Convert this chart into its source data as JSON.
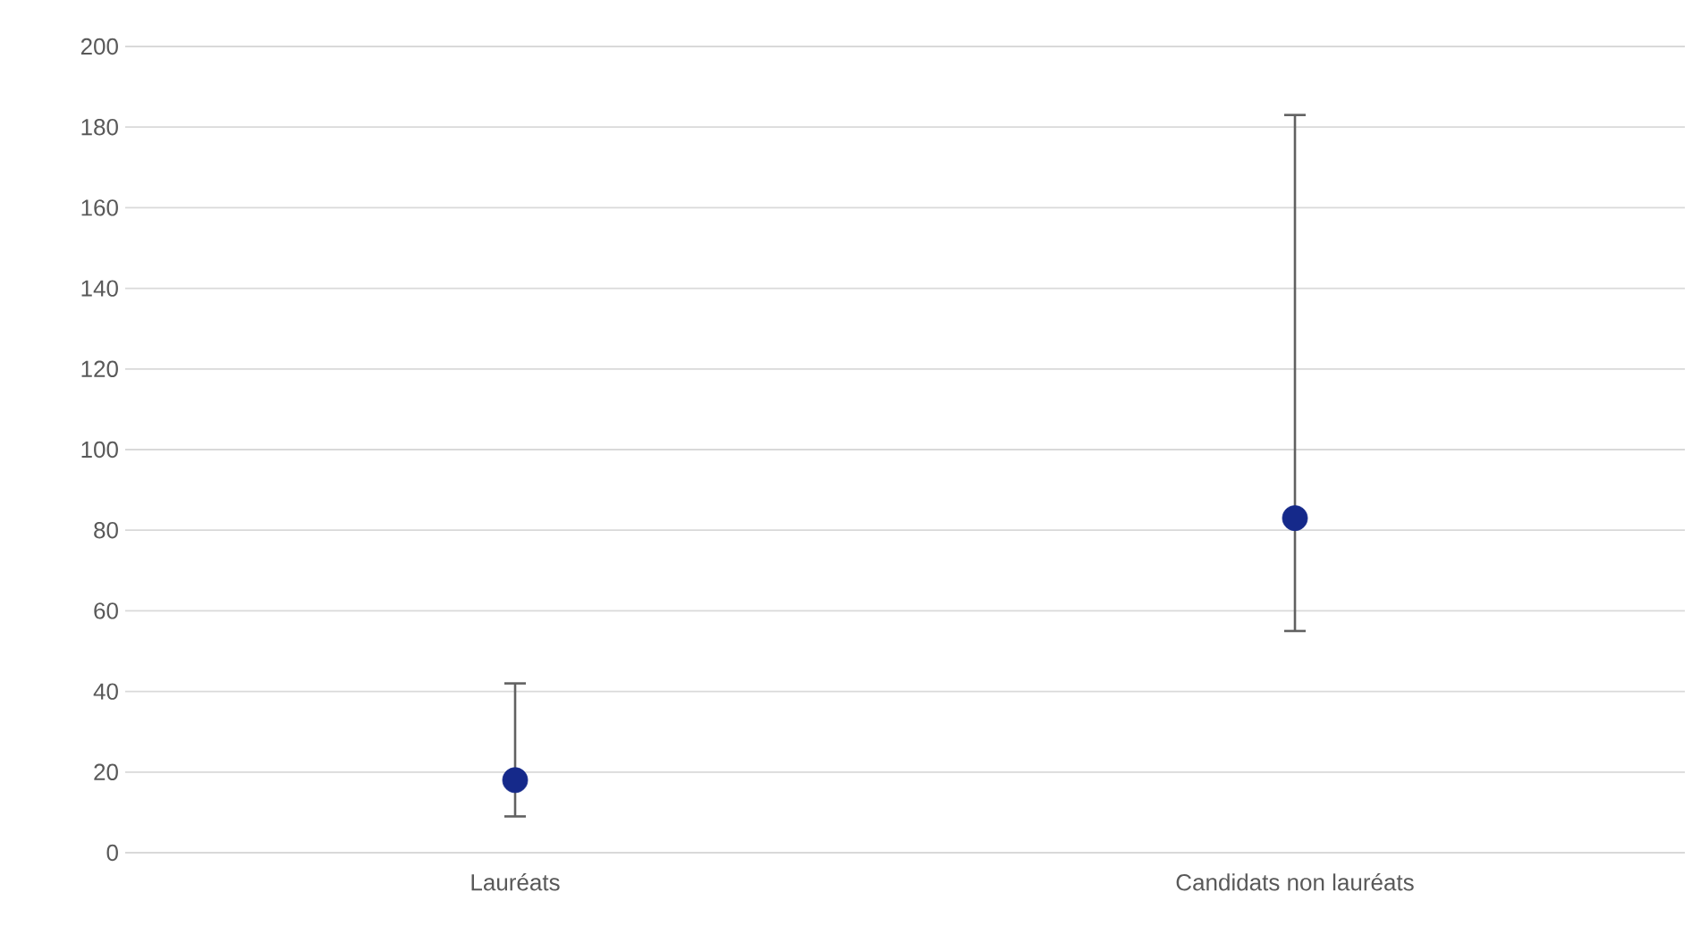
{
  "chart_data": {
    "type": "scatter",
    "categories": [
      "Lauréats",
      "Candidats non lauréats"
    ],
    "series": [
      {
        "color": "#15298a",
        "values": [
          18,
          83
        ],
        "errors": [
          [
            9,
            42
          ],
          [
            55,
            183
          ]
        ]
      }
    ],
    "ylim": [
      0,
      200
    ],
    "yticks": [
      0,
      20,
      40,
      60,
      80,
      100,
      120,
      140,
      160,
      180,
      200
    ],
    "grid": "y",
    "marker": "circle"
  }
}
